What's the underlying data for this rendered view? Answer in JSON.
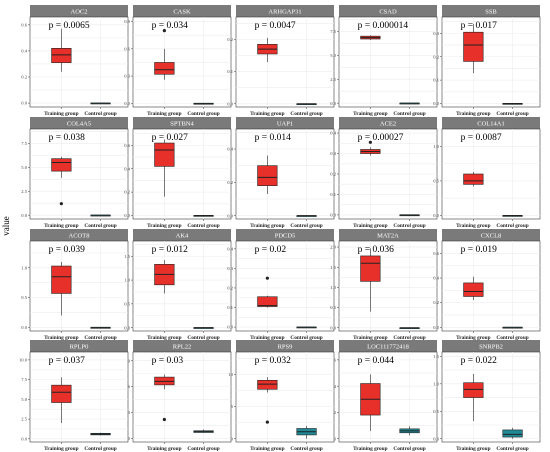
{
  "chart_data": {
    "type": "boxplot",
    "ylabel": "value",
    "xlabel": "",
    "groups": [
      "Training group",
      "Control group"
    ],
    "colors": {
      "training": "#e8302b",
      "control": "#1f8a96",
      "strip": "#7a7a7a",
      "grid": "#ececec"
    },
    "panels": [
      {
        "gene": "AOC2",
        "p_label": "p = 0.0065",
        "yticks": [
          0.0,
          0.2,
          0.4,
          0.6
        ],
        "ylim": [
          -0.03,
          0.66
        ],
        "training": {
          "min": 0.24,
          "q1": 0.31,
          "median": 0.37,
          "q3": 0.42,
          "max": 0.57,
          "outliers": []
        },
        "control": {
          "min": 0.0,
          "q1": 0.0,
          "median": 0.0,
          "q3": 0.0,
          "max": 0.0,
          "outliers": []
        }
      },
      {
        "gene": "CASK",
        "p_label": "p = 0.034",
        "yticks": [
          0.0,
          0.3,
          0.6,
          0.9
        ],
        "ylim": [
          -0.04,
          0.95
        ],
        "training": {
          "min": 0.26,
          "q1": 0.32,
          "median": 0.37,
          "q3": 0.45,
          "max": 0.6,
          "outliers": [
            0.8
          ]
        },
        "control": {
          "min": 0.0,
          "q1": 0.0,
          "median": 0.0,
          "q3": 0.0,
          "max": 0.0,
          "outliers": []
        }
      },
      {
        "gene": "ARHGAP31",
        "p_label": "p = 0.0047",
        "yticks": [
          0.0,
          0.1,
          0.2
        ],
        "ylim": [
          -0.01,
          0.27
        ],
        "training": {
          "min": 0.13,
          "q1": 0.155,
          "median": 0.17,
          "q3": 0.185,
          "max": 0.205,
          "outliers": []
        },
        "control": {
          "min": 0.0,
          "q1": 0.0,
          "median": 0.0,
          "q3": 0.0,
          "max": 0.0,
          "outliers": []
        }
      },
      {
        "gene": "CSAD",
        "p_label": "p = 0.000014",
        "yticks": [
          0.0,
          2.5,
          5.0,
          7.5
        ],
        "ylim": [
          -0.4,
          9.0
        ],
        "training": {
          "min": 6.6,
          "q1": 6.7,
          "median": 6.85,
          "q3": 7.0,
          "max": 7.1,
          "outliers": []
        },
        "control": {
          "min": 0.0,
          "q1": 0.0,
          "median": 0.0,
          "q3": 0.0,
          "max": 0.0,
          "outliers": []
        }
      },
      {
        "gene": "SSB",
        "p_label": "p = 0.017",
        "yticks": [
          0.0,
          0.1,
          0.2,
          0.3
        ],
        "ylim": [
          -0.015,
          0.37
        ],
        "training": {
          "min": 0.13,
          "q1": 0.18,
          "median": 0.25,
          "q3": 0.305,
          "max": 0.34,
          "outliers": []
        },
        "control": {
          "min": 0.0,
          "q1": 0.0,
          "median": 0.0,
          "q3": 0.0,
          "max": 0.0,
          "outliers": []
        }
      },
      {
        "gene": "COL4A5",
        "p_label": "p = 0.038",
        "yticks": [
          0.0,
          2.5,
          5.0,
          7.5
        ],
        "ylim": [
          -0.4,
          9.0
        ],
        "training": {
          "min": 3.9,
          "q1": 4.6,
          "median": 5.5,
          "q3": 5.9,
          "max": 6.1,
          "outliers": [
            1.2
          ]
        },
        "control": {
          "min": 0.0,
          "q1": 0.0,
          "median": 0.0,
          "q3": 0.0,
          "max": 0.0,
          "outliers": []
        }
      },
      {
        "gene": "SPTBN4",
        "p_label": "p = 0.027",
        "yticks": [
          0.0,
          0.2,
          0.4,
          0.6
        ],
        "ylim": [
          -0.03,
          0.74
        ],
        "training": {
          "min": 0.16,
          "q1": 0.42,
          "median": 0.56,
          "q3": 0.62,
          "max": 0.65,
          "outliers": []
        },
        "control": {
          "min": 0.0,
          "q1": 0.0,
          "median": 0.0,
          "q3": 0.0,
          "max": 0.0,
          "outliers": []
        }
      },
      {
        "gene": "UAP1",
        "p_label": "p = 0.014",
        "yticks": [
          0.0,
          0.2,
          0.4
        ],
        "ylim": [
          -0.02,
          0.52
        ],
        "training": {
          "min": 0.13,
          "q1": 0.18,
          "median": 0.23,
          "q3": 0.3,
          "max": 0.36,
          "outliers": []
        },
        "control": {
          "min": 0.0,
          "q1": 0.0,
          "median": 0.0,
          "q3": 0.0,
          "max": 0.0,
          "outliers": []
        }
      },
      {
        "gene": "ACE2",
        "p_label": "p = 0.00027",
        "yticks": [
          0.0,
          0.1,
          0.2,
          0.3,
          0.4
        ],
        "ylim": [
          -0.02,
          0.42
        ],
        "training": {
          "min": 0.29,
          "q1": 0.3,
          "median": 0.31,
          "q3": 0.32,
          "max": 0.33,
          "outliers": [
            0.355
          ]
        },
        "control": {
          "min": 0.0,
          "q1": 0.0,
          "median": 0.0,
          "q3": 0.0,
          "max": 0.0,
          "outliers": []
        }
      },
      {
        "gene": "COL14A1",
        "p_label": "p = 0.0087",
        "yticks": [
          0.0,
          0.5,
          1.0
        ],
        "ylim": [
          -0.05,
          1.25
        ],
        "training": {
          "min": 0.42,
          "q1": 0.45,
          "median": 0.5,
          "q3": 0.6,
          "max": 0.63,
          "outliers": []
        },
        "control": {
          "min": 0.0,
          "q1": 0.0,
          "median": 0.0,
          "q3": 0.0,
          "max": 0.0,
          "outliers": []
        }
      },
      {
        "gene": "ACOT8",
        "p_label": "p = 0.039",
        "yticks": [
          0.0,
          0.5,
          1.0
        ],
        "ylim": [
          -0.06,
          1.45
        ],
        "training": {
          "min": 0.2,
          "q1": 0.57,
          "median": 0.85,
          "q3": 1.03,
          "max": 1.1,
          "outliers": []
        },
        "control": {
          "min": 0.0,
          "q1": 0.0,
          "median": 0.0,
          "q3": 0.0,
          "max": 0.0,
          "outliers": []
        }
      },
      {
        "gene": "AK4",
        "p_label": "p = 0.012",
        "yticks": [
          0.0,
          0.5,
          1.0,
          1.5
        ],
        "ylim": [
          -0.07,
          1.82
        ],
        "training": {
          "min": 0.72,
          "q1": 0.9,
          "median": 1.12,
          "q3": 1.33,
          "max": 1.42,
          "outliers": []
        },
        "control": {
          "min": 0.0,
          "q1": 0.0,
          "median": 0.0,
          "q3": 0.0,
          "max": 0.0,
          "outliers": []
        }
      },
      {
        "gene": "PDCD5",
        "p_label": "p = 0.02",
        "yticks": [
          0.0,
          0.1,
          0.2,
          0.3,
          0.4
        ],
        "ylim": [
          -0.02,
          0.44
        ],
        "training": {
          "min": 0.1,
          "q1": 0.105,
          "median": 0.11,
          "q3": 0.155,
          "max": 0.16,
          "outliers": [
            0.25
          ]
        },
        "control": {
          "min": 0.0,
          "q1": 0.0,
          "median": 0.0,
          "q3": 0.0,
          "max": 0.0,
          "outliers": []
        }
      },
      {
        "gene": "MAT2A",
        "p_label": "p = 0.036",
        "yticks": [
          0.0,
          0.5,
          1.0,
          1.5,
          2.0
        ],
        "ylim": [
          -0.08,
          2.15
        ],
        "training": {
          "min": 0.4,
          "q1": 1.15,
          "median": 1.6,
          "q3": 1.78,
          "max": 1.97,
          "outliers": []
        },
        "control": {
          "min": 0.0,
          "q1": 0.0,
          "median": 0.0,
          "q3": 0.0,
          "max": 0.0,
          "outliers": []
        }
      },
      {
        "gene": "CXCL8",
        "p_label": "p = 0.019",
        "yticks": [
          0.0,
          0.2,
          0.4,
          0.6
        ],
        "ylim": [
          -0.03,
          0.7
        ],
        "training": {
          "min": 0.22,
          "q1": 0.25,
          "median": 0.29,
          "q3": 0.36,
          "max": 0.41,
          "outliers": []
        },
        "control": {
          "min": 0.0,
          "q1": 0.0,
          "median": 0.0,
          "q3": 0.0,
          "max": 0.0,
          "outliers": []
        }
      },
      {
        "gene": "RPLP0",
        "p_label": "p = 0.037",
        "yticks": [
          0.0,
          2.5,
          5.0,
          7.5,
          10.0
        ],
        "ylim": [
          -0.4,
          11.0
        ],
        "training": {
          "min": 2.0,
          "q1": 4.6,
          "median": 5.9,
          "q3": 6.8,
          "max": 7.8,
          "outliers": []
        },
        "control": {
          "min": 0.45,
          "q1": 0.5,
          "median": 0.6,
          "q3": 0.7,
          "max": 0.78,
          "outliers": []
        }
      },
      {
        "gene": "RPL22",
        "p_label": "p = 0.03",
        "yticks": [
          0.0,
          3.0,
          6.0,
          9.0
        ],
        "ylim": [
          -0.4,
          10.0
        ],
        "training": {
          "min": 5.7,
          "q1": 6.2,
          "median": 6.6,
          "q3": 7.1,
          "max": 7.4,
          "outliers": [
            2.2
          ]
        },
        "control": {
          "min": 0.65,
          "q1": 0.7,
          "median": 0.8,
          "q3": 0.9,
          "max": 1.05,
          "outliers": []
        }
      },
      {
        "gene": "RPS9",
        "p_label": "p = 0.032",
        "yticks": [
          0.0,
          5.0,
          10.0
        ],
        "ylim": [
          -0.5,
          13.5
        ],
        "training": {
          "min": 7.2,
          "q1": 7.7,
          "median": 8.5,
          "q3": 9.1,
          "max": 9.6,
          "outliers": [
            2.6
          ]
        },
        "control": {
          "min": 0.0,
          "q1": 0.6,
          "median": 1.1,
          "q3": 1.6,
          "max": 2.0,
          "outliers": []
        }
      },
      {
        "gene": "LOC111772418",
        "p_label": "p = 0.044",
        "yticks": [
          0,
          2,
          4,
          6
        ],
        "ylim": [
          -0.25,
          6.6
        ],
        "training": {
          "min": 0.6,
          "q1": 1.8,
          "median": 3.0,
          "q3": 4.2,
          "max": 4.9,
          "outliers": []
        },
        "control": {
          "min": 0.25,
          "q1": 0.45,
          "median": 0.6,
          "q3": 0.75,
          "max": 0.95,
          "outliers": []
        }
      },
      {
        "gene": "SNRPB2",
        "p_label": "p = 0.022",
        "yticks": [
          0.0,
          0.5,
          1.0,
          1.5
        ],
        "ylim": [
          -0.06,
          1.58
        ],
        "training": {
          "min": 0.32,
          "q1": 0.75,
          "median": 0.9,
          "q3": 1.02,
          "max": 1.18,
          "outliers": []
        },
        "control": {
          "min": 0.0,
          "q1": 0.03,
          "median": 0.08,
          "q3": 0.16,
          "max": 0.2,
          "outliers": []
        }
      }
    ]
  }
}
